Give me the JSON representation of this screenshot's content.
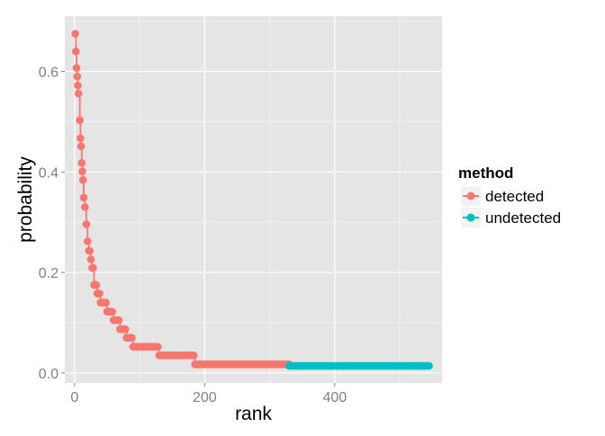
{
  "chart_data": {
    "type": "line",
    "title": "",
    "xlabel": "rank",
    "ylabel": "probability",
    "xlim": [
      -15,
      565
    ],
    "ylim": [
      -0.02,
      0.71
    ],
    "x_ticks": [
      0,
      200,
      400
    ],
    "x_tick_labels": [
      "0",
      "200",
      "400"
    ],
    "y_ticks": [
      0.0,
      0.2,
      0.4,
      0.6
    ],
    "y_tick_labels": [
      "0.0",
      "0.2",
      "0.4",
      "0.6"
    ],
    "grid": true,
    "panel_background": "#e5e5e5",
    "grid_color": "#ffffff",
    "legend": {
      "title": "method",
      "position": "right",
      "entries": [
        "detected",
        "undetected"
      ]
    },
    "series": [
      {
        "name": "detected",
        "color": "#f8766d",
        "x": [
          1,
          2,
          3,
          4,
          5,
          6,
          8,
          9,
          10,
          11,
          12,
          13,
          14,
          16,
          18,
          20,
          22,
          25,
          27,
          30,
          35,
          40,
          50,
          60,
          70,
          80,
          90,
          100,
          110,
          120,
          130,
          140,
          150,
          160,
          170,
          180,
          185,
          200,
          220,
          240,
          260,
          280,
          300,
          320,
          330
        ],
        "y": [
          0.675,
          0.64,
          0.607,
          0.59,
          0.572,
          0.556,
          0.503,
          0.467,
          0.451,
          0.418,
          0.401,
          0.384,
          0.349,
          0.33,
          0.296,
          0.262,
          0.243,
          0.226,
          0.209,
          0.175,
          0.158,
          0.14,
          0.122,
          0.105,
          0.087,
          0.07,
          0.052,
          0.052,
          0.052,
          0.052,
          0.035,
          0.035,
          0.035,
          0.035,
          0.035,
          0.035,
          0.017,
          0.017,
          0.017,
          0.017,
          0.017,
          0.017,
          0.017,
          0.017,
          0.017
        ]
      },
      {
        "name": "undetected",
        "color": "#00bfc4",
        "x": [
          330,
          350,
          370,
          390,
          410,
          430,
          450,
          470,
          490,
          510,
          530,
          545
        ],
        "y": [
          0.014,
          0.014,
          0.014,
          0.014,
          0.014,
          0.014,
          0.014,
          0.014,
          0.014,
          0.014,
          0.014,
          0.014
        ]
      }
    ]
  }
}
